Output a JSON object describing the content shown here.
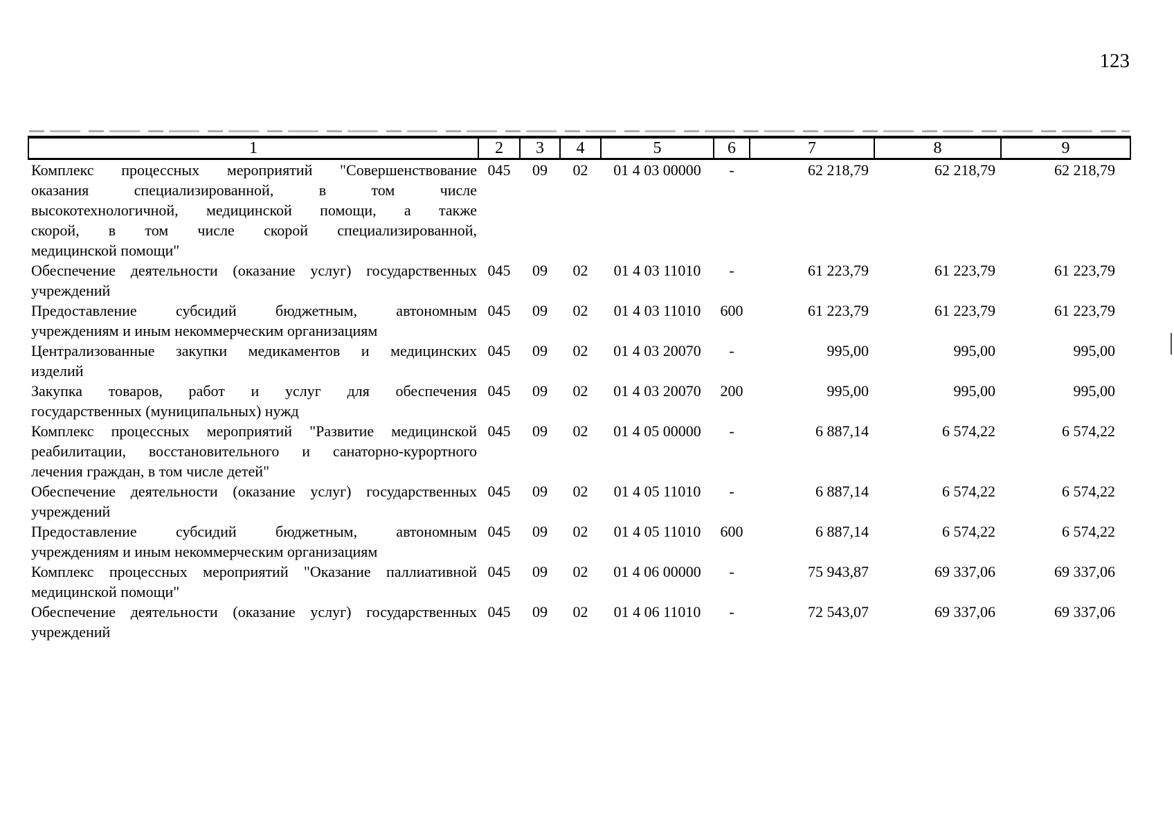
{
  "page": {
    "number": "123"
  },
  "table": {
    "columns": [
      "1",
      "2",
      "3",
      "4",
      "5",
      "6",
      "7",
      "8",
      "9"
    ],
    "rows": [
      {
        "name_lines": [
          "Комплекс процессных мероприятий \"Совершенствование",
          "оказания специализированной, в том числе",
          "высокотехнологичной, медицинской помощи, а также",
          "скорой, в том числе скорой специализированной,",
          "медицинской помощи\""
        ],
        "grbs": "045",
        "rz": "09",
        "pr": "02",
        "csr": "01 4 03 00000",
        "vr": "-",
        "sum1": "62 218,79",
        "sum2": "62 218,79",
        "sum3": "62 218,79"
      },
      {
        "name_lines": [
          "Обеспечение деятельности (оказание услуг) государственных",
          "учреждений"
        ],
        "grbs": "045",
        "rz": "09",
        "pr": "02",
        "csr": "01 4 03 11010",
        "vr": "-",
        "sum1": "61 223,79",
        "sum2": "61 223,79",
        "sum3": "61 223,79"
      },
      {
        "name_lines": [
          "Предоставление субсидий бюджетным, автономным",
          "учреждениям и иным некоммерческим организациям"
        ],
        "grbs": "045",
        "rz": "09",
        "pr": "02",
        "csr": "01 4 03 11010",
        "vr": "600",
        "sum1": "61 223,79",
        "sum2": "61 223,79",
        "sum3": "61 223,79"
      },
      {
        "name_lines": [
          "Централизованные закупки медикаментов и медицинских",
          "изделий"
        ],
        "grbs": "045",
        "rz": "09",
        "pr": "02",
        "csr": "01 4 03 20070",
        "vr": "-",
        "sum1": "995,00",
        "sum2": "995,00",
        "sum3": "995,00"
      },
      {
        "name_lines": [
          "Закупка товаров, работ и услуг для обеспечения",
          "государственных (муниципальных) нужд"
        ],
        "grbs": "045",
        "rz": "09",
        "pr": "02",
        "csr": "01 4 03 20070",
        "vr": "200",
        "sum1": "995,00",
        "sum2": "995,00",
        "sum3": "995,00"
      },
      {
        "name_lines": [
          "Комплекс процессных мероприятий \"Развитие медицинской",
          "реабилитации, восстановительного и санаторно-курортного",
          "лечения граждан, в том числе детей\""
        ],
        "grbs": "045",
        "rz": "09",
        "pr": "02",
        "csr": "01 4 05 00000",
        "vr": "-",
        "sum1": "6 887,14",
        "sum2": "6 574,22",
        "sum3": "6 574,22"
      },
      {
        "name_lines": [
          "Обеспечение деятельности (оказание услуг) государственных",
          "учреждений"
        ],
        "grbs": "045",
        "rz": "09",
        "pr": "02",
        "csr": "01 4 05 11010",
        "vr": "-",
        "sum1": "6 887,14",
        "sum2": "6 574,22",
        "sum3": "6 574,22"
      },
      {
        "name_lines": [
          "Предоставление субсидий бюджетным, автономным",
          "учреждениям и иным некоммерческим организациям"
        ],
        "grbs": "045",
        "rz": "09",
        "pr": "02",
        "csr": "01 4 05 11010",
        "vr": "600",
        "sum1": "6 887,14",
        "sum2": "6 574,22",
        "sum3": "6 574,22"
      },
      {
        "name_lines": [
          "Комплекс процессных мероприятий \"Оказание паллиативной",
          "медицинской помощи\""
        ],
        "grbs": "045",
        "rz": "09",
        "pr": "02",
        "csr": "01 4 06 00000",
        "vr": "-",
        "sum1": "75 943,87",
        "sum2": "69 337,06",
        "sum3": "69 337,06"
      },
      {
        "name_lines": [
          "Обеспечение деятельности (оказание услуг) государственных",
          "учреждений"
        ],
        "grbs": "045",
        "rz": "09",
        "pr": "02",
        "csr": "01 4 06 11010",
        "vr": "-",
        "sum1": "72 543,07",
        "sum2": "69 337,06",
        "sum3": "69 337,06"
      }
    ]
  }
}
